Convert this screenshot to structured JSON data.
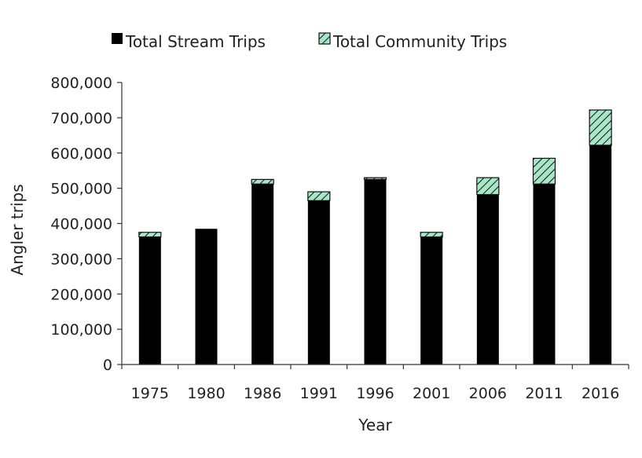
{
  "chart_data": {
    "type": "bar",
    "stacked": true,
    "categories": [
      "1975",
      "1980",
      "1986",
      "1991",
      "1996",
      "2001",
      "2006",
      "2011",
      "2016"
    ],
    "series": [
      {
        "name": "Total Stream Trips",
        "color": "#000000",
        "fill": "solid",
        "values": [
          362000,
          385000,
          512000,
          465000,
          525000,
          362000,
          482000,
          512000,
          622000
        ]
      },
      {
        "name": "Total Community Trips",
        "color": "#a8e6c8",
        "fill": "diagonal-hatch",
        "values": [
          13000,
          0,
          13000,
          25000,
          5000,
          13000,
          48000,
          73000,
          100000
        ]
      }
    ],
    "title": "",
    "xlabel": "Year",
    "ylabel": "Angler trips",
    "ylim": [
      0,
      800000
    ],
    "yticks": [
      "0",
      "100,000",
      "200,000",
      "300,000",
      "400,000",
      "500,000",
      "600,000",
      "700,000",
      "800,000"
    ],
    "grid": false,
    "legend": "top-center"
  }
}
